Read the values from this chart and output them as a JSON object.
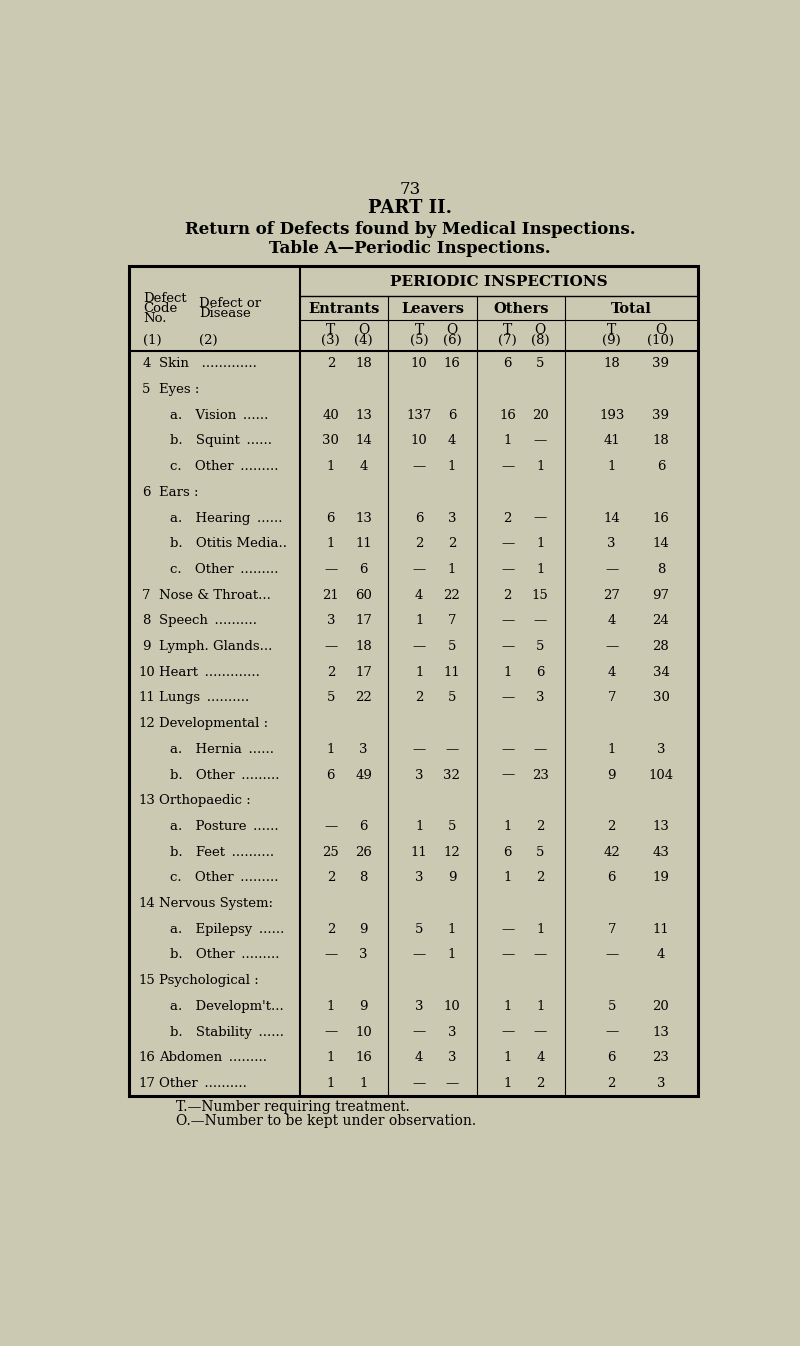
{
  "page_number": "73",
  "title1": "PART II.",
  "title2": "Return of Defects found by Medical Inspections.",
  "title3": "Table A—Periodic Inspections.",
  "bg_color": "#ccc9b2",
  "header_main": "PERIODIC INSPECTIONS",
  "header_groups": [
    "Entrants",
    "Leavers",
    "Others",
    "Total"
  ],
  "footnote1": "T.—Number requiring treatment.",
  "footnote2": "O.—Number to be kept under observation.",
  "rows": [
    {
      "label1": "4",
      "label2": "Skin   .............",
      "indent": false,
      "vals": [
        "2",
        "18",
        "10",
        "16",
        "6",
        "5",
        "18",
        "39"
      ]
    },
    {
      "label1": "5",
      "label2": "Eyes :",
      "indent": false,
      "vals": [
        "",
        "",
        "",
        "",
        "",
        "",
        "",
        ""
      ]
    },
    {
      "label1": "",
      "label2": "a. Vision ......",
      "indent": true,
      "vals": [
        "40",
        "13",
        "137",
        "6",
        "16",
        "20",
        "193",
        "39"
      ]
    },
    {
      "label1": "",
      "label2": "b. Squint ......",
      "indent": true,
      "vals": [
        "30",
        "14",
        "10",
        "4",
        "1",
        "—",
        "41",
        "18"
      ]
    },
    {
      "label1": "",
      "label2": "c. Other .........",
      "indent": true,
      "vals": [
        "1",
        "4",
        "—",
        "1",
        "—",
        "1",
        "1",
        "6"
      ]
    },
    {
      "label1": "6",
      "label2": "Ears :",
      "indent": false,
      "vals": [
        "",
        "",
        "",
        "",
        "",
        "",
        "",
        ""
      ]
    },
    {
      "label1": "",
      "label2": "a. Hearing ......",
      "indent": true,
      "vals": [
        "6",
        "13",
        "6",
        "3",
        "2",
        "—",
        "14",
        "16"
      ]
    },
    {
      "label1": "",
      "label2": "b. Otitis Media..",
      "indent": true,
      "vals": [
        "1",
        "11",
        "2",
        "2",
        "—",
        "1",
        "3",
        "14"
      ]
    },
    {
      "label1": "",
      "label2": "c. Other .........",
      "indent": true,
      "vals": [
        "—",
        "6",
        "—",
        "1",
        "—",
        "1",
        "—",
        "8"
      ]
    },
    {
      "label1": "7",
      "label2": "Nose & Throat...",
      "indent": false,
      "vals": [
        "21",
        "60",
        "4",
        "22",
        "2",
        "15",
        "27",
        "97"
      ]
    },
    {
      "label1": "8",
      "label2": "Speech ..........",
      "indent": false,
      "vals": [
        "3",
        "17",
        "1",
        "7",
        "—",
        "—",
        "4",
        "24"
      ]
    },
    {
      "label1": "9",
      "label2": "Lymph. Glands...",
      "indent": false,
      "vals": [
        "—",
        "18",
        "—",
        "5",
        "—",
        "5",
        "—",
        "28"
      ]
    },
    {
      "label1": "10",
      "label2": "Heart .............",
      "indent": false,
      "vals": [
        "2",
        "17",
        "1",
        "11",
        "1",
        "6",
        "4",
        "34"
      ]
    },
    {
      "label1": "11",
      "label2": "Lungs ..........",
      "indent": false,
      "vals": [
        "5",
        "22",
        "2",
        "5",
        "—",
        "3",
        "7",
        "30"
      ]
    },
    {
      "label1": "12",
      "label2": "Developmental :",
      "indent": false,
      "vals": [
        "",
        "",
        "",
        "",
        "",
        "",
        "",
        ""
      ]
    },
    {
      "label1": "",
      "label2": "a. Hernia ......",
      "indent": true,
      "vals": [
        "1",
        "3",
        "—",
        "—",
        "—",
        "—",
        "1",
        "3"
      ]
    },
    {
      "label1": "",
      "label2": "b. Other .........",
      "indent": true,
      "vals": [
        "6",
        "49",
        "3",
        "32",
        "—",
        "23",
        "9",
        "104"
      ]
    },
    {
      "label1": "13",
      "label2": "Orthopaedic :",
      "indent": false,
      "vals": [
        "",
        "",
        "",
        "",
        "",
        "",
        "",
        ""
      ]
    },
    {
      "label1": "",
      "label2": "a. Posture ......",
      "indent": true,
      "vals": [
        "—",
        "6",
        "1",
        "5",
        "1",
        "2",
        "2",
        "13"
      ]
    },
    {
      "label1": "",
      "label2": "b. Feet ..........",
      "indent": true,
      "vals": [
        "25",
        "26",
        "11",
        "12",
        "6",
        "5",
        "42",
        "43"
      ]
    },
    {
      "label1": "",
      "label2": "c. Other .........",
      "indent": true,
      "vals": [
        "2",
        "8",
        "3",
        "9",
        "1",
        "2",
        "6",
        "19"
      ]
    },
    {
      "label1": "14",
      "label2": "Nervous System:",
      "indent": false,
      "vals": [
        "",
        "",
        "",
        "",
        "",
        "",
        "",
        ""
      ]
    },
    {
      "label1": "",
      "label2": "a. Epilepsy ......",
      "indent": true,
      "vals": [
        "2",
        "9",
        "5",
        "1",
        "—",
        "1",
        "7",
        "11"
      ]
    },
    {
      "label1": "",
      "label2": "b. Other .........",
      "indent": true,
      "vals": [
        "—",
        "3",
        "—",
        "1",
        "—",
        "—",
        "—",
        "4"
      ]
    },
    {
      "label1": "15",
      "label2": "Psychological :",
      "indent": false,
      "vals": [
        "",
        "",
        "",
        "",
        "",
        "",
        "",
        ""
      ]
    },
    {
      "label1": "",
      "label2": "a. Developm't...",
      "indent": true,
      "vals": [
        "1",
        "9",
        "3",
        "10",
        "1",
        "1",
        "5",
        "20"
      ]
    },
    {
      "label1": "",
      "label2": "b. Stability ......",
      "indent": true,
      "vals": [
        "—",
        "10",
        "—",
        "3",
        "—",
        "—",
        "—",
        "13"
      ]
    },
    {
      "label1": "16",
      "label2": "Abdomen .........",
      "indent": false,
      "vals": [
        "1",
        "16",
        "4",
        "3",
        "1",
        "4",
        "6",
        "23"
      ]
    },
    {
      "label1": "17",
      "label2": "Other ..........",
      "indent": false,
      "vals": [
        "1",
        "1",
        "—",
        "—",
        "1",
        "2",
        "2",
        "3"
      ]
    }
  ]
}
